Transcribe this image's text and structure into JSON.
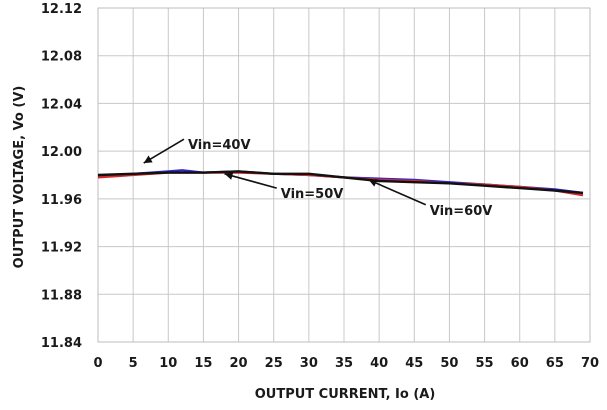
{
  "chart_data": {
    "type": "line",
    "title": "",
    "xlabel": "OUTPUT CURRENT, Io (A)",
    "ylabel": "OUTPUT VOLTAGE, Vo (V)",
    "xlim": [
      0,
      70
    ],
    "ylim": [
      11.84,
      12.12
    ],
    "xticks": [
      "0",
      "5",
      "10",
      "15",
      "20",
      "25",
      "30",
      "35",
      "40",
      "45",
      "50",
      "55",
      "60",
      "65",
      "70"
    ],
    "yticks": [
      "11.84",
      "11.88",
      "11.92",
      "11.96",
      "12.00",
      "12.04",
      "12.08",
      "12.12"
    ],
    "grid": true,
    "series": [
      {
        "name": "Vin=40V",
        "color": "#2a2ad4",
        "x": [
          0,
          5,
          10,
          12,
          15,
          20,
          25,
          30,
          35,
          40,
          45,
          50,
          55,
          60,
          65,
          69
        ],
        "y": [
          11.979,
          11.981,
          11.983,
          11.984,
          11.982,
          11.983,
          11.981,
          11.98,
          11.978,
          11.977,
          11.976,
          11.974,
          11.972,
          11.97,
          11.968,
          11.965
        ]
      },
      {
        "name": "Vin=50V",
        "color": "#d42a2a",
        "x": [
          0,
          5,
          10,
          15,
          20,
          25,
          30,
          35,
          40,
          45,
          50,
          55,
          60,
          65,
          69
        ],
        "y": [
          11.978,
          11.98,
          11.982,
          11.982,
          11.982,
          11.981,
          11.98,
          11.978,
          11.976,
          11.975,
          11.973,
          11.972,
          11.97,
          11.967,
          11.963
        ]
      },
      {
        "name": "Vin=60V",
        "color": "#111111",
        "x": [
          0,
          5,
          10,
          15,
          20,
          25,
          30,
          35,
          40,
          45,
          50,
          55,
          60,
          65,
          69
        ],
        "y": [
          11.98,
          11.981,
          11.982,
          11.982,
          11.983,
          11.981,
          11.981,
          11.978,
          11.975,
          11.974,
          11.973,
          11.971,
          11.969,
          11.967,
          11.965
        ]
      }
    ],
    "annotations": [
      {
        "text": "Vin=40V",
        "x": 6.5,
        "y": 11.99,
        "tx": 12.8,
        "ty": 12.005
      },
      {
        "text": "Vin=50V",
        "x": 18.0,
        "y": 11.981,
        "tx": 26.0,
        "ty": 11.964
      },
      {
        "text": "Vin=60V",
        "x": 38.5,
        "y": 11.976,
        "tx": 47.2,
        "ty": 11.95
      }
    ]
  }
}
